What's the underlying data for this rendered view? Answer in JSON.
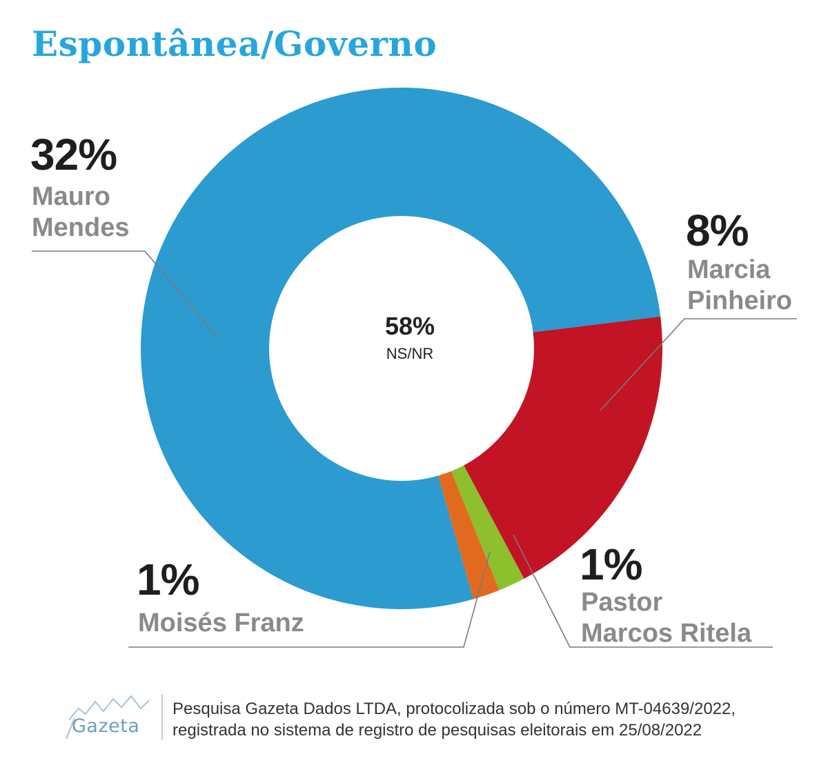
{
  "header": {
    "title": "Espontânea/Governo"
  },
  "chart_data": {
    "type": "pie",
    "title": "Espontânea/Governo",
    "donut": true,
    "center": {
      "value": "58%",
      "label": "NS/NR"
    },
    "slices": [
      {
        "value_label": "32%",
        "label": "Mauro Mendes",
        "color": "#2b9bd0"
      },
      {
        "value_label": "8%",
        "label": "Marcia Pinheiro",
        "color": "#c21424"
      },
      {
        "value_label": "1%",
        "label": "Pastor Marcos Ritela",
        "color": "#8ebf2d"
      },
      {
        "value_label": "1%",
        "label": "Moisés Franz",
        "color": "#e26a1f"
      }
    ]
  },
  "labels": {
    "mauro": {
      "pct": "32%",
      "line1": "Mauro",
      "line2": "Mendes"
    },
    "marcia": {
      "pct": "8%",
      "line1": "Marcia",
      "line2": "Pinheiro"
    },
    "pastor": {
      "pct": "1%",
      "line1": "Pastor",
      "line2": "Marcos Ritela"
    },
    "moises": {
      "pct": "1%",
      "line1": "Moisés Franz"
    }
  },
  "footer": {
    "logo_text": "Gazeta",
    "line1": "Pesquisa Gazeta Dados LTDA, protocolizada sob o número MT-04639/2022,",
    "line2": "registrada no sistema de registro de pesquisas eleitorais em 25/08/2022"
  }
}
